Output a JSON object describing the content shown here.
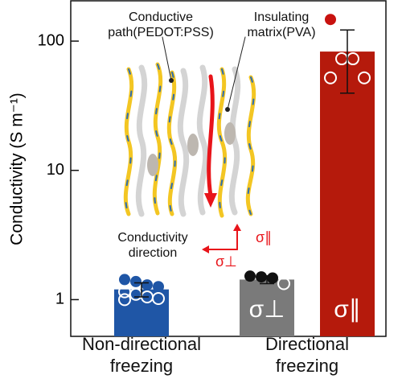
{
  "chart_data": {
    "type": "bar",
    "y_label": "Conductivity (S m⁻¹)",
    "log_y": true,
    "ylim": [
      0.52,
      205
    ],
    "yticks": [
      1,
      10,
      100
    ],
    "annotations": [
      "Conductive\npath(PEDOT:PSS)",
      "Insulating\nmatrix(PVA)",
      "Conductivity\ndirection"
    ],
    "groups": [
      {
        "label": "Non-directional\nfreezing",
        "bars": [
          {
            "color": "#1f56a6",
            "point_color": "#1f56a6",
            "value": 1.2,
            "error": [
              1.05,
              1.35
            ],
            "points": [
              1.43,
              1.38,
              1.3,
              1.26,
              1.15,
              1.1,
              1.05,
              1.02,
              1.0
            ]
          }
        ]
      },
      {
        "label": "Directional\nfreezing",
        "bars": [
          {
            "name": "σ⊥",
            "color": "#7a7a7a",
            "point_color": "#111111",
            "value": 1.43,
            "error": [
              1.33,
              1.53
            ],
            "points": [
              1.52,
              1.5,
              1.47,
              1.33
            ]
          },
          {
            "name": "σ∥",
            "color": "#b51a0c",
            "point_color": "#c8120f",
            "value": 83,
            "error": [
              39.6,
              122
            ],
            "points": [
              147,
              73,
              73,
              52,
              52
            ]
          }
        ]
      }
    ]
  }
}
